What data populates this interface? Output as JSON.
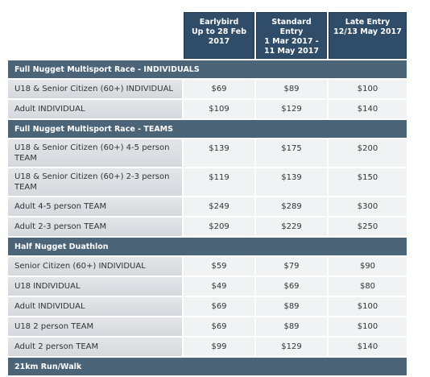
{
  "header": {
    "columns": [
      [
        "Earlybird",
        "Up to 28 Feb 2017"
      ],
      [
        "Standard Entry",
        "1 Mar 2017 - 11 May 2017"
      ],
      [
        "Late Entry",
        "12/13 May 2017"
      ]
    ]
  },
  "sections": [
    {
      "title": "Full Nugget Multisport Race - INDIVIDUALS",
      "rows": [
        [
          "U18 & Senior Citizen (60+) INDIVIDUAL",
          "$69",
          "$89",
          "$100"
        ],
        [
          "Adult INDIVIDUAL",
          "$109",
          "$129",
          "$140"
        ]
      ]
    },
    {
      "title": "Full Nugget Multisport Race - TEAMS",
      "rows": [
        [
          "U18 & Senior Citizen (60+) 4-5 person TEAM",
          "$139",
          "$175",
          "$200"
        ],
        [
          "U18 & Senior Citizen (60+) 2-3 person TEAM",
          "$119",
          "$139",
          "$150"
        ],
        [
          "Adult 4-5 person TEAM",
          "$249",
          "$289",
          "$300"
        ],
        [
          "Adult 2-3 person TEAM",
          "$209",
          "$229",
          "$250"
        ]
      ]
    },
    {
      "title": "Half Nugget Duathlon",
      "rows": [
        [
          "Senior Citizen (60+) INDIVIDUAL",
          "$59",
          "$79",
          "$90"
        ],
        [
          "U18 INDIVIDUAL",
          "$49",
          "$69",
          "$80"
        ],
        [
          "Adult INDIVIDUAL",
          "$69",
          "$89",
          "$100"
        ],
        [
          "U18 2 person TEAM",
          "$69",
          "$89",
          "$100"
        ],
        [
          "Adult 2 person TEAM",
          "$99",
          "$129",
          "$140"
        ]
      ]
    },
    {
      "title": "21km Run/Walk",
      "rows": []
    }
  ]
}
